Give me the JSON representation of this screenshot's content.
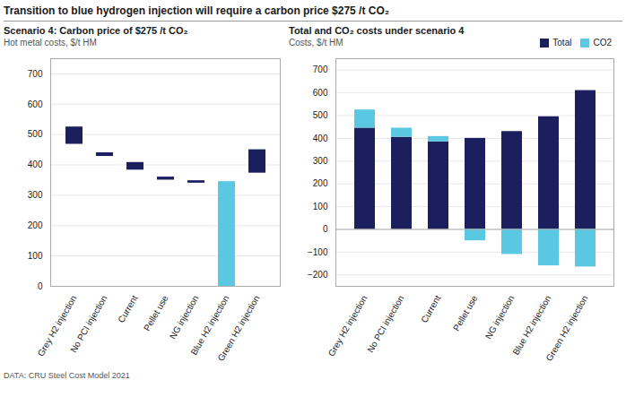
{
  "title": "Transition to blue hydrogen injection will require a carbon price $275 /t CO₂",
  "footer": "DATA: CRU Steel Cost Model 2021",
  "chart_data": [
    {
      "type": "bar",
      "title": "Scenario 4: Carbon price of $275 /t CO₂",
      "subtitle": "Hot metal costs, $/t HM",
      "categories": [
        "Grey H2 injection",
        "No PCI injection",
        "Current",
        "Pellet use",
        "NG injection",
        "Blue H2 injection",
        "Green H2 injection"
      ],
      "bottoms": [
        468,
        428,
        383,
        350,
        340,
        0,
        373
      ],
      "values": [
        525,
        440,
        408,
        360,
        348,
        345,
        450
      ],
      "colors": [
        "#1b1f5e",
        "#1b1f5e",
        "#1b1f5e",
        "#1b1f5e",
        "#1b1f5e",
        "#5bc8e3",
        "#1b1f5e"
      ],
      "ylim": [
        0,
        750
      ],
      "yticks": [
        0,
        100,
        200,
        300,
        400,
        500,
        600,
        700
      ],
      "grid": true
    },
    {
      "type": "bar",
      "title": "Total and CO₂ costs under scenario 4",
      "subtitle": "Costs, $/t HM",
      "categories": [
        "Grey H2 injection",
        "No PCI injection",
        "Current",
        "Pellet use",
        "NG injection",
        "Blue H2 injection",
        "Green H2 injection"
      ],
      "series": [
        {
          "name": "Total",
          "color": "#1b1f5e",
          "values": [
            445,
            405,
            385,
            400,
            430,
            495,
            610
          ]
        },
        {
          "name": "CO2",
          "color": "#5bc8e3",
          "values": [
            525,
            445,
            408,
            -50,
            -110,
            -160,
            -165
          ]
        }
      ],
      "ylim": [
        -250,
        750
      ],
      "yticks": [
        -200,
        -100,
        0,
        100,
        200,
        300,
        400,
        500,
        600,
        700
      ],
      "grid": true,
      "legend": "top"
    }
  ]
}
